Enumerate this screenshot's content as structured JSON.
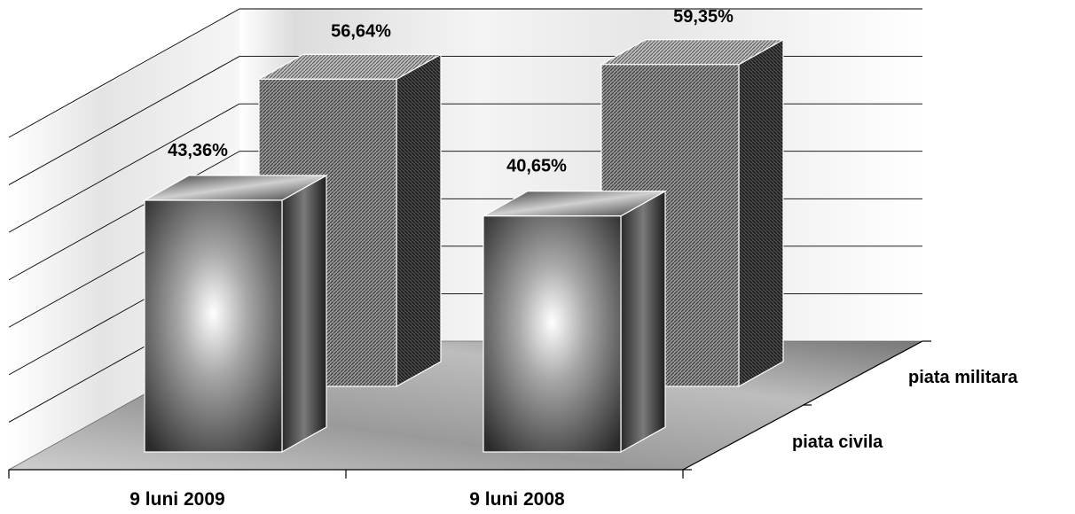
{
  "chart_data": {
    "type": "bar",
    "subtype": "3d-clustered",
    "categories": [
      "9 luni 2009",
      "9 luni 2008"
    ],
    "series": [
      {
        "name": "piata civila",
        "values": [
          43.36,
          40.65
        ],
        "labels": [
          "43,36%",
          "40,65%"
        ]
      },
      {
        "name": "piata militara",
        "values": [
          56.64,
          59.35
        ],
        "labels": [
          "56,64%",
          "59,35%"
        ]
      }
    ],
    "ylim": [
      0,
      70
    ],
    "grid": true,
    "legend": "none",
    "colors": {
      "front_series": "#6e6e6e",
      "back_series": "#8a8a8a",
      "floor": "#9a9a9a"
    }
  }
}
